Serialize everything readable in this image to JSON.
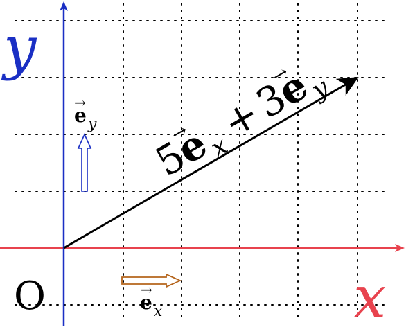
{
  "labels": {
    "y_axis": "y",
    "x_axis": "x",
    "origin": "O",
    "ex_base": "e",
    "ex_sub": "x",
    "ey_base": "e",
    "ey_sub": "y",
    "vector_coeff_x": "5",
    "vector_base_x": "e",
    "vector_sub_x": "x",
    "vector_plus": "+",
    "vector_coeff_y": "3",
    "vector_base_y": "e",
    "vector_sub_y": "y"
  },
  "vector": {
    "x": 5,
    "y": 3
  },
  "colors": {
    "x_axis": "#e8434e",
    "y_axis": "#1a2fc4",
    "ex_vector": "#b5651d",
    "ey_vector": "#1a2fc4",
    "main_vector": "#000000",
    "grid": "#000000"
  }
}
